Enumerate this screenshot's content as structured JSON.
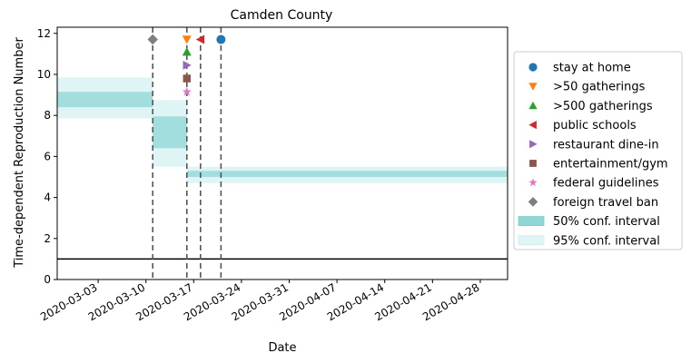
{
  "chart_data": {
    "type": "line",
    "title": "Camden County",
    "xlabel": "Date",
    "ylabel": "Time-dependent Reproduction Number",
    "xlim": [
      "2020-02-26",
      "2020-05-02"
    ],
    "ylim": [
      0,
      12.3
    ],
    "grid": false,
    "legend_position": "center-right",
    "x_ticks": [
      "2020-03-03",
      "2020-03-10",
      "2020-03-17",
      "2020-03-24",
      "2020-03-31",
      "2020-04-07",
      "2020-04-14",
      "2020-04-21",
      "2020-04-28"
    ],
    "y_ticks": [
      "0",
      "2",
      "4",
      "6",
      "8",
      "10",
      "12"
    ],
    "reference_line": {
      "y": 1,
      "color": "#000000"
    },
    "bands": [
      {
        "start": "2020-02-26",
        "end": "2020-03-11",
        "ci50": [
          8.4,
          9.15
        ],
        "ci95": [
          7.85,
          9.85
        ]
      },
      {
        "start": "2020-03-11",
        "end": "2020-03-16",
        "ci50": [
          6.4,
          7.95
        ],
        "ci95": [
          5.5,
          8.75
        ]
      },
      {
        "start": "2020-03-16",
        "end": "2020-05-02",
        "ci50": [
          5.0,
          5.3
        ],
        "ci95": [
          4.7,
          5.5
        ]
      }
    ],
    "interventions": [
      {
        "name": "stay at home",
        "date": "2020-03-21",
        "y": 11.7,
        "marker": "circle",
        "color": "#1f77b4"
      },
      {
        "name": ">50 gatherings",
        "date": "2020-03-16",
        "y": 11.7,
        "marker": "triangle-down",
        "color": "#ff7f0e"
      },
      {
        "name": ">500 gatherings",
        "date": "2020-03-16",
        "y": 11.1,
        "marker": "triangle-up",
        "color": "#2ca02c"
      },
      {
        "name": "public schools",
        "date": "2020-03-18",
        "y": 11.7,
        "marker": "triangle-left",
        "color": "#d62728"
      },
      {
        "name": "restaurant dine-in",
        "date": "2020-03-16",
        "y": 10.45,
        "marker": "triangle-right",
        "color": "#9467bd"
      },
      {
        "name": "entertainment/gym",
        "date": "2020-03-16",
        "y": 9.8,
        "marker": "square",
        "color": "#8c564b"
      },
      {
        "name": "federal guidelines",
        "date": "2020-03-16",
        "y": 9.15,
        "marker": "star",
        "color": "#e377c2"
      },
      {
        "name": "foreign travel ban",
        "date": "2020-03-11",
        "y": 11.7,
        "marker": "diamond",
        "color": "#7f7f7f"
      }
    ],
    "vlines": [
      "2020-03-11",
      "2020-03-16",
      "2020-03-18",
      "2020-03-21"
    ],
    "ci_labels": {
      "ci50": "50% conf. interval",
      "ci95": "95% conf. interval"
    },
    "colors": {
      "ci50": "#8fd6d6",
      "ci95": "#dff5f5",
      "vline": "#555555"
    }
  }
}
